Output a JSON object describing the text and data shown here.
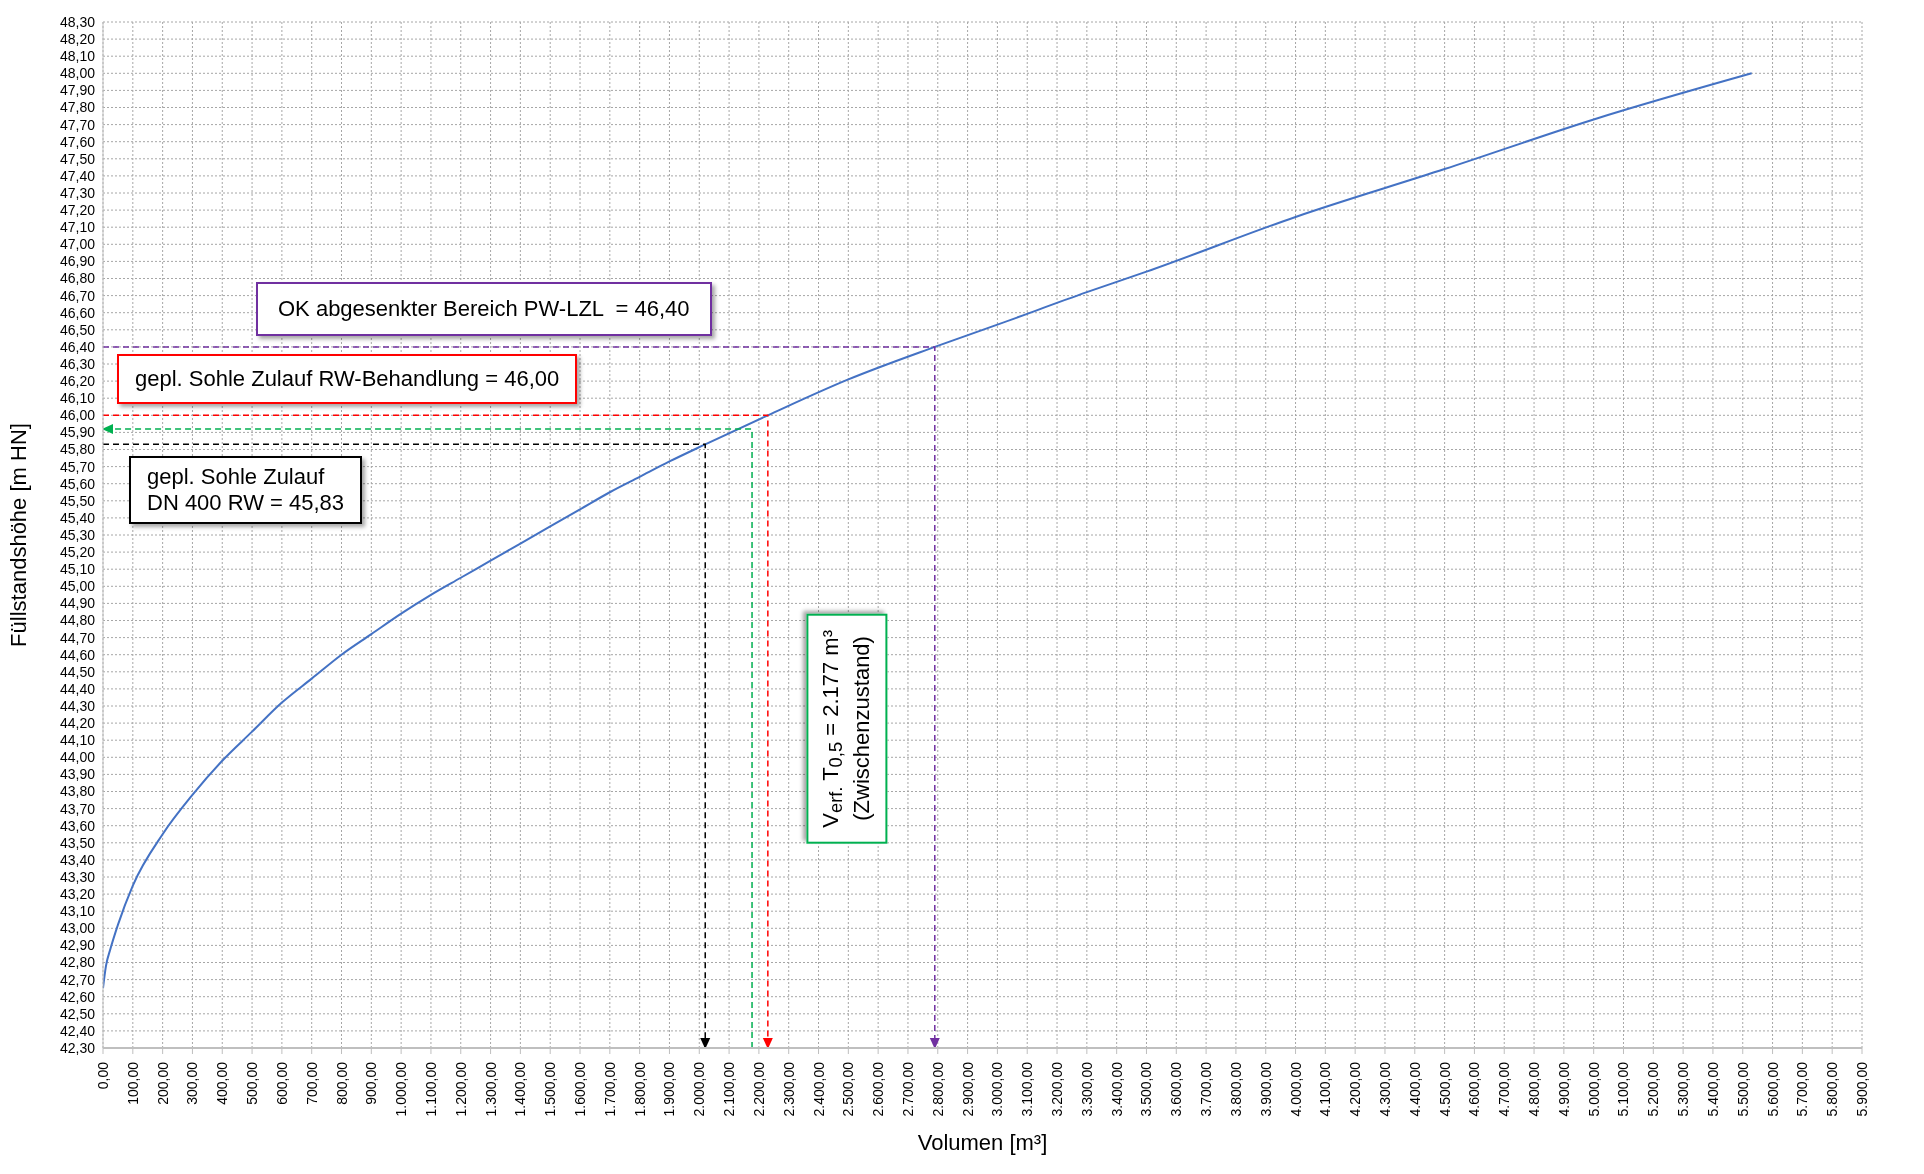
{
  "chart_data": {
    "type": "line",
    "xlabel": "Volumen [m³]",
    "ylabel": "Füllstandshöhe [m HN]",
    "xlim": [
      0,
      5900
    ],
    "ylim": [
      42.3,
      48.3
    ],
    "xticks": [
      {
        "value": 0,
        "label": "0,00"
      },
      {
        "value": 100,
        "label": "100,00"
      },
      {
        "value": 200,
        "label": "200,00"
      },
      {
        "value": 300,
        "label": "300,00"
      },
      {
        "value": 400,
        "label": "400,00"
      },
      {
        "value": 500,
        "label": "500,00"
      },
      {
        "value": 600,
        "label": "600,00"
      },
      {
        "value": 700,
        "label": "700,00"
      },
      {
        "value": 800,
        "label": "800,00"
      },
      {
        "value": 900,
        "label": "900,00"
      },
      {
        "value": 1000,
        "label": "1.000,00"
      },
      {
        "value": 1100,
        "label": "1.100,00"
      },
      {
        "value": 1200,
        "label": "1.200,00"
      },
      {
        "value": 1300,
        "label": "1.300,00"
      },
      {
        "value": 1400,
        "label": "1.400,00"
      },
      {
        "value": 1500,
        "label": "1.500,00"
      },
      {
        "value": 1600,
        "label": "1.600,00"
      },
      {
        "value": 1700,
        "label": "1.700,00"
      },
      {
        "value": 1800,
        "label": "1.800,00"
      },
      {
        "value": 1900,
        "label": "1.900,00"
      },
      {
        "value": 2000,
        "label": "2.000,00"
      },
      {
        "value": 2100,
        "label": "2.100,00"
      },
      {
        "value": 2200,
        "label": "2.200,00"
      },
      {
        "value": 2300,
        "label": "2.300,00"
      },
      {
        "value": 2400,
        "label": "2.400,00"
      },
      {
        "value": 2500,
        "label": "2.500,00"
      },
      {
        "value": 2600,
        "label": "2.600,00"
      },
      {
        "value": 2700,
        "label": "2.700,00"
      },
      {
        "value": 2800,
        "label": "2.800,00"
      },
      {
        "value": 2900,
        "label": "2.900,00"
      },
      {
        "value": 3000,
        "label": "3.000,00"
      },
      {
        "value": 3100,
        "label": "3.100,00"
      },
      {
        "value": 3200,
        "label": "3.200,00"
      },
      {
        "value": 3300,
        "label": "3.300,00"
      },
      {
        "value": 3400,
        "label": "3.400,00"
      },
      {
        "value": 3500,
        "label": "3.500,00"
      },
      {
        "value": 3600,
        "label": "3.600,00"
      },
      {
        "value": 3700,
        "label": "3.700,00"
      },
      {
        "value": 3800,
        "label": "3.800,00"
      },
      {
        "value": 3900,
        "label": "3.900,00"
      },
      {
        "value": 4000,
        "label": "4.000,00"
      },
      {
        "value": 4100,
        "label": "4.100,00"
      },
      {
        "value": 4200,
        "label": "4.200,00"
      },
      {
        "value": 4300,
        "label": "4.300,00"
      },
      {
        "value": 4400,
        "label": "4.400,00"
      },
      {
        "value": 4500,
        "label": "4.500,00"
      },
      {
        "value": 4600,
        "label": "4.600,00"
      },
      {
        "value": 4700,
        "label": "4.700,00"
      },
      {
        "value": 4800,
        "label": "4.800,00"
      },
      {
        "value": 4900,
        "label": "4.900,00"
      },
      {
        "value": 5000,
        "label": "5.000,00"
      },
      {
        "value": 5100,
        "label": "5.100,00"
      },
      {
        "value": 5200,
        "label": "5.200,00"
      },
      {
        "value": 5300,
        "label": "5.300,00"
      },
      {
        "value": 5400,
        "label": "5.400,00"
      },
      {
        "value": 5500,
        "label": "5.500,00"
      },
      {
        "value": 5600,
        "label": "5.600,00"
      },
      {
        "value": 5700,
        "label": "5.700,00"
      },
      {
        "value": 5800,
        "label": "5.800,00"
      },
      {
        "value": 5900,
        "label": "5.900,00"
      }
    ],
    "yticks": [
      {
        "value": 42.3,
        "label": "42,30"
      },
      {
        "value": 42.4,
        "label": "42,40"
      },
      {
        "value": 42.5,
        "label": "42,50"
      },
      {
        "value": 42.6,
        "label": "42,60"
      },
      {
        "value": 42.7,
        "label": "42,70"
      },
      {
        "value": 42.8,
        "label": "42,80"
      },
      {
        "value": 42.9,
        "label": "42,90"
      },
      {
        "value": 43.0,
        "label": "43,00"
      },
      {
        "value": 43.1,
        "label": "43,10"
      },
      {
        "value": 43.2,
        "label": "43,20"
      },
      {
        "value": 43.3,
        "label": "43,30"
      },
      {
        "value": 43.4,
        "label": "43,40"
      },
      {
        "value": 43.5,
        "label": "43,50"
      },
      {
        "value": 43.6,
        "label": "43,60"
      },
      {
        "value": 43.7,
        "label": "43,70"
      },
      {
        "value": 43.8,
        "label": "43,80"
      },
      {
        "value": 43.9,
        "label": "43,90"
      },
      {
        "value": 44.0,
        "label": "44,00"
      },
      {
        "value": 44.1,
        "label": "44,10"
      },
      {
        "value": 44.2,
        "label": "44,20"
      },
      {
        "value": 44.3,
        "label": "44,30"
      },
      {
        "value": 44.4,
        "label": "44,40"
      },
      {
        "value": 44.5,
        "label": "44,50"
      },
      {
        "value": 44.6,
        "label": "44,60"
      },
      {
        "value": 44.7,
        "label": "44,70"
      },
      {
        "value": 44.8,
        "label": "44,80"
      },
      {
        "value": 44.9,
        "label": "44,90"
      },
      {
        "value": 45.0,
        "label": "45,00"
      },
      {
        "value": 45.1,
        "label": "45,10"
      },
      {
        "value": 45.2,
        "label": "45,20"
      },
      {
        "value": 45.3,
        "label": "45,30"
      },
      {
        "value": 45.4,
        "label": "45,40"
      },
      {
        "value": 45.5,
        "label": "45,50"
      },
      {
        "value": 45.6,
        "label": "45,60"
      },
      {
        "value": 45.7,
        "label": "45,70"
      },
      {
        "value": 45.8,
        "label": "45,80"
      },
      {
        "value": 45.9,
        "label": "45,90"
      },
      {
        "value": 46.0,
        "label": "46,00"
      },
      {
        "value": 46.1,
        "label": "46,10"
      },
      {
        "value": 46.2,
        "label": "46,20"
      },
      {
        "value": 46.3,
        "label": "46,30"
      },
      {
        "value": 46.4,
        "label": "46,40"
      },
      {
        "value": 46.5,
        "label": "46,50"
      },
      {
        "value": 46.6,
        "label": "46,60"
      },
      {
        "value": 46.7,
        "label": "46,70"
      },
      {
        "value": 46.8,
        "label": "46,80"
      },
      {
        "value": 46.9,
        "label": "46,90"
      },
      {
        "value": 47.0,
        "label": "47,00"
      },
      {
        "value": 47.1,
        "label": "47,10"
      },
      {
        "value": 47.2,
        "label": "47,20"
      },
      {
        "value": 47.3,
        "label": "47,30"
      },
      {
        "value": 47.4,
        "label": "47,40"
      },
      {
        "value": 47.5,
        "label": "47,50"
      },
      {
        "value": 47.6,
        "label": "47,60"
      },
      {
        "value": 47.7,
        "label": "47,70"
      },
      {
        "value": 47.8,
        "label": "47,80"
      },
      {
        "value": 47.9,
        "label": "47,90"
      },
      {
        "value": 48.0,
        "label": "48,00"
      },
      {
        "value": 48.1,
        "label": "48,10"
      },
      {
        "value": 48.2,
        "label": "48,20"
      },
      {
        "value": 48.3,
        "label": "48,30"
      }
    ],
    "grid": true,
    "marker": "none",
    "series": [
      {
        "color": "#4472c4",
        "line_style": "solid",
        "x": [
          0,
          10,
          25,
          50,
          100,
          200,
          300,
          400,
          500,
          600,
          700,
          800,
          900,
          1000,
          1100,
          1200,
          1300,
          1400,
          1500,
          1600,
          1700,
          1800,
          1900,
          2020,
          2230,
          2500,
          2790,
          3000,
          3300,
          3500,
          4000,
          4500,
          5000,
          5530
        ],
        "values": [
          42.65,
          42.78,
          42.88,
          43.02,
          43.25,
          43.55,
          43.78,
          43.98,
          44.15,
          44.32,
          44.46,
          44.6,
          44.72,
          44.84,
          44.95,
          45.05,
          45.15,
          45.25,
          45.35,
          45.45,
          45.55,
          45.64,
          45.73,
          45.83,
          46.0,
          46.21,
          46.4,
          46.53,
          46.72,
          46.84,
          47.16,
          47.44,
          47.73,
          48.0
        ]
      },
      {
        "type": "line",
        "color": "#7030a0",
        "line_style": "dashed",
        "x": [
          0,
          2790,
          2790
        ],
        "values": [
          46.4,
          46.4,
          42.3
        ]
      },
      {
        "type": "line",
        "color": "#ff0000",
        "line_style": "dashed",
        "x": [
          0,
          2230,
          2230
        ],
        "values": [
          46.0,
          46.0,
          42.3
        ]
      },
      {
        "type": "line",
        "color": "#00b050",
        "line_style": "dashed",
        "x": [
          2177,
          2177,
          0
        ],
        "values": [
          42.3,
          45.92,
          45.92
        ]
      },
      {
        "type": "line",
        "color": "#000000",
        "line_style": "dashed",
        "x": [
          0,
          2020,
          2020
        ],
        "values": [
          45.83,
          45.83,
          42.3
        ]
      }
    ],
    "annotations": [
      {
        "text": "OK abgesenkter Bereich PW-LZL  = 46,40",
        "y": 46.4
      },
      {
        "text": "gepl. Sohle Zulauf RW-Behandlung = 46,00",
        "y": 46.0
      },
      {
        "text": "gepl. Sohle Zulauf\nDN 400 RW = 45,83",
        "y": 45.83
      },
      "V$_{erf.}$ T$_{0,5}$ = 2.177 m³\n(Zwischenzustand)"
    ]
  }
}
